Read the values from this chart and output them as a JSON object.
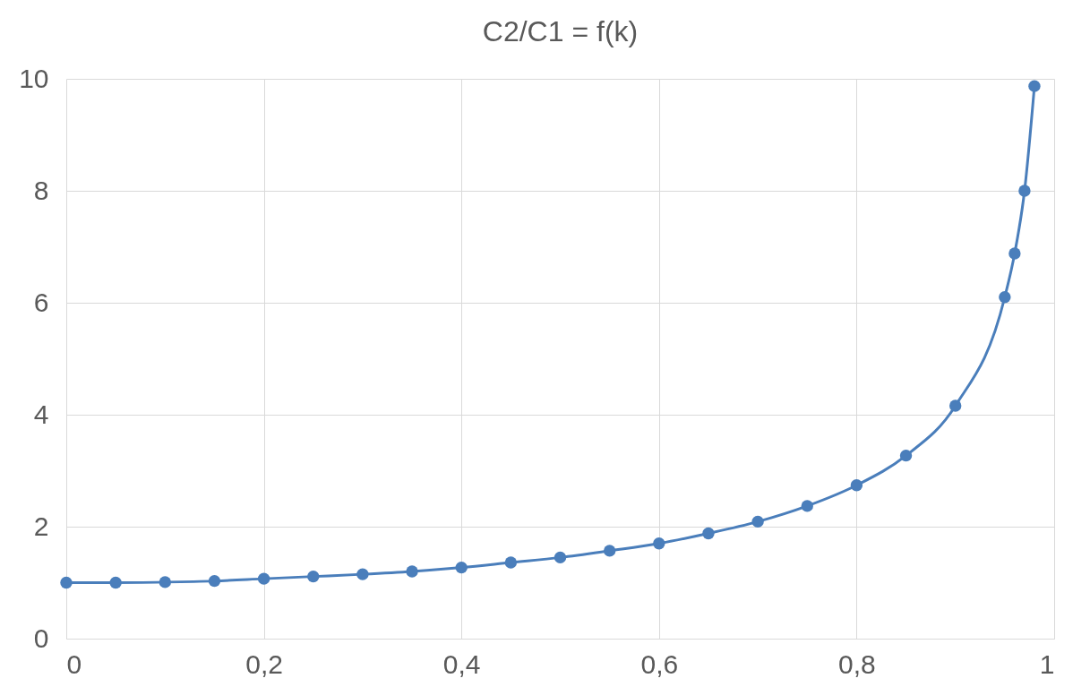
{
  "chart_data": {
    "type": "line",
    "title": "C2/C1 = f(k)",
    "x": [
      0,
      0.05,
      0.1,
      0.15,
      0.2,
      0.25,
      0.3,
      0.35,
      0.4,
      0.45,
      0.5,
      0.55,
      0.6,
      0.65,
      0.7,
      0.75,
      0.8,
      0.85,
      0.9,
      0.95,
      0.96,
      0.97,
      0.98
    ],
    "series": [
      {
        "color": "#4a7ebb",
        "values": [
          1.0,
          1.0,
          1.01,
          1.03,
          1.07,
          1.11,
          1.15,
          1.2,
          1.27,
          1.36,
          1.45,
          1.57,
          1.7,
          1.88,
          2.09,
          2.37,
          2.74,
          3.27,
          4.16,
          6.1,
          6.88,
          8.0,
          9.87
        ]
      }
    ],
    "xlim": [
      0,
      1
    ],
    "xticks": [
      0,
      {
        "value": 0.2,
        "label": "0,2"
      },
      {
        "value": 0.4,
        "label": "0,4"
      },
      {
        "value": 0.6,
        "label": "0,6"
      },
      {
        "value": 0.8,
        "label": "0,8"
      },
      1
    ],
    "ylim": [
      0,
      10
    ],
    "yticks": [
      0,
      2,
      4,
      6,
      8,
      10
    ],
    "grid": true,
    "marker": "circle",
    "line_style": "solid"
  }
}
